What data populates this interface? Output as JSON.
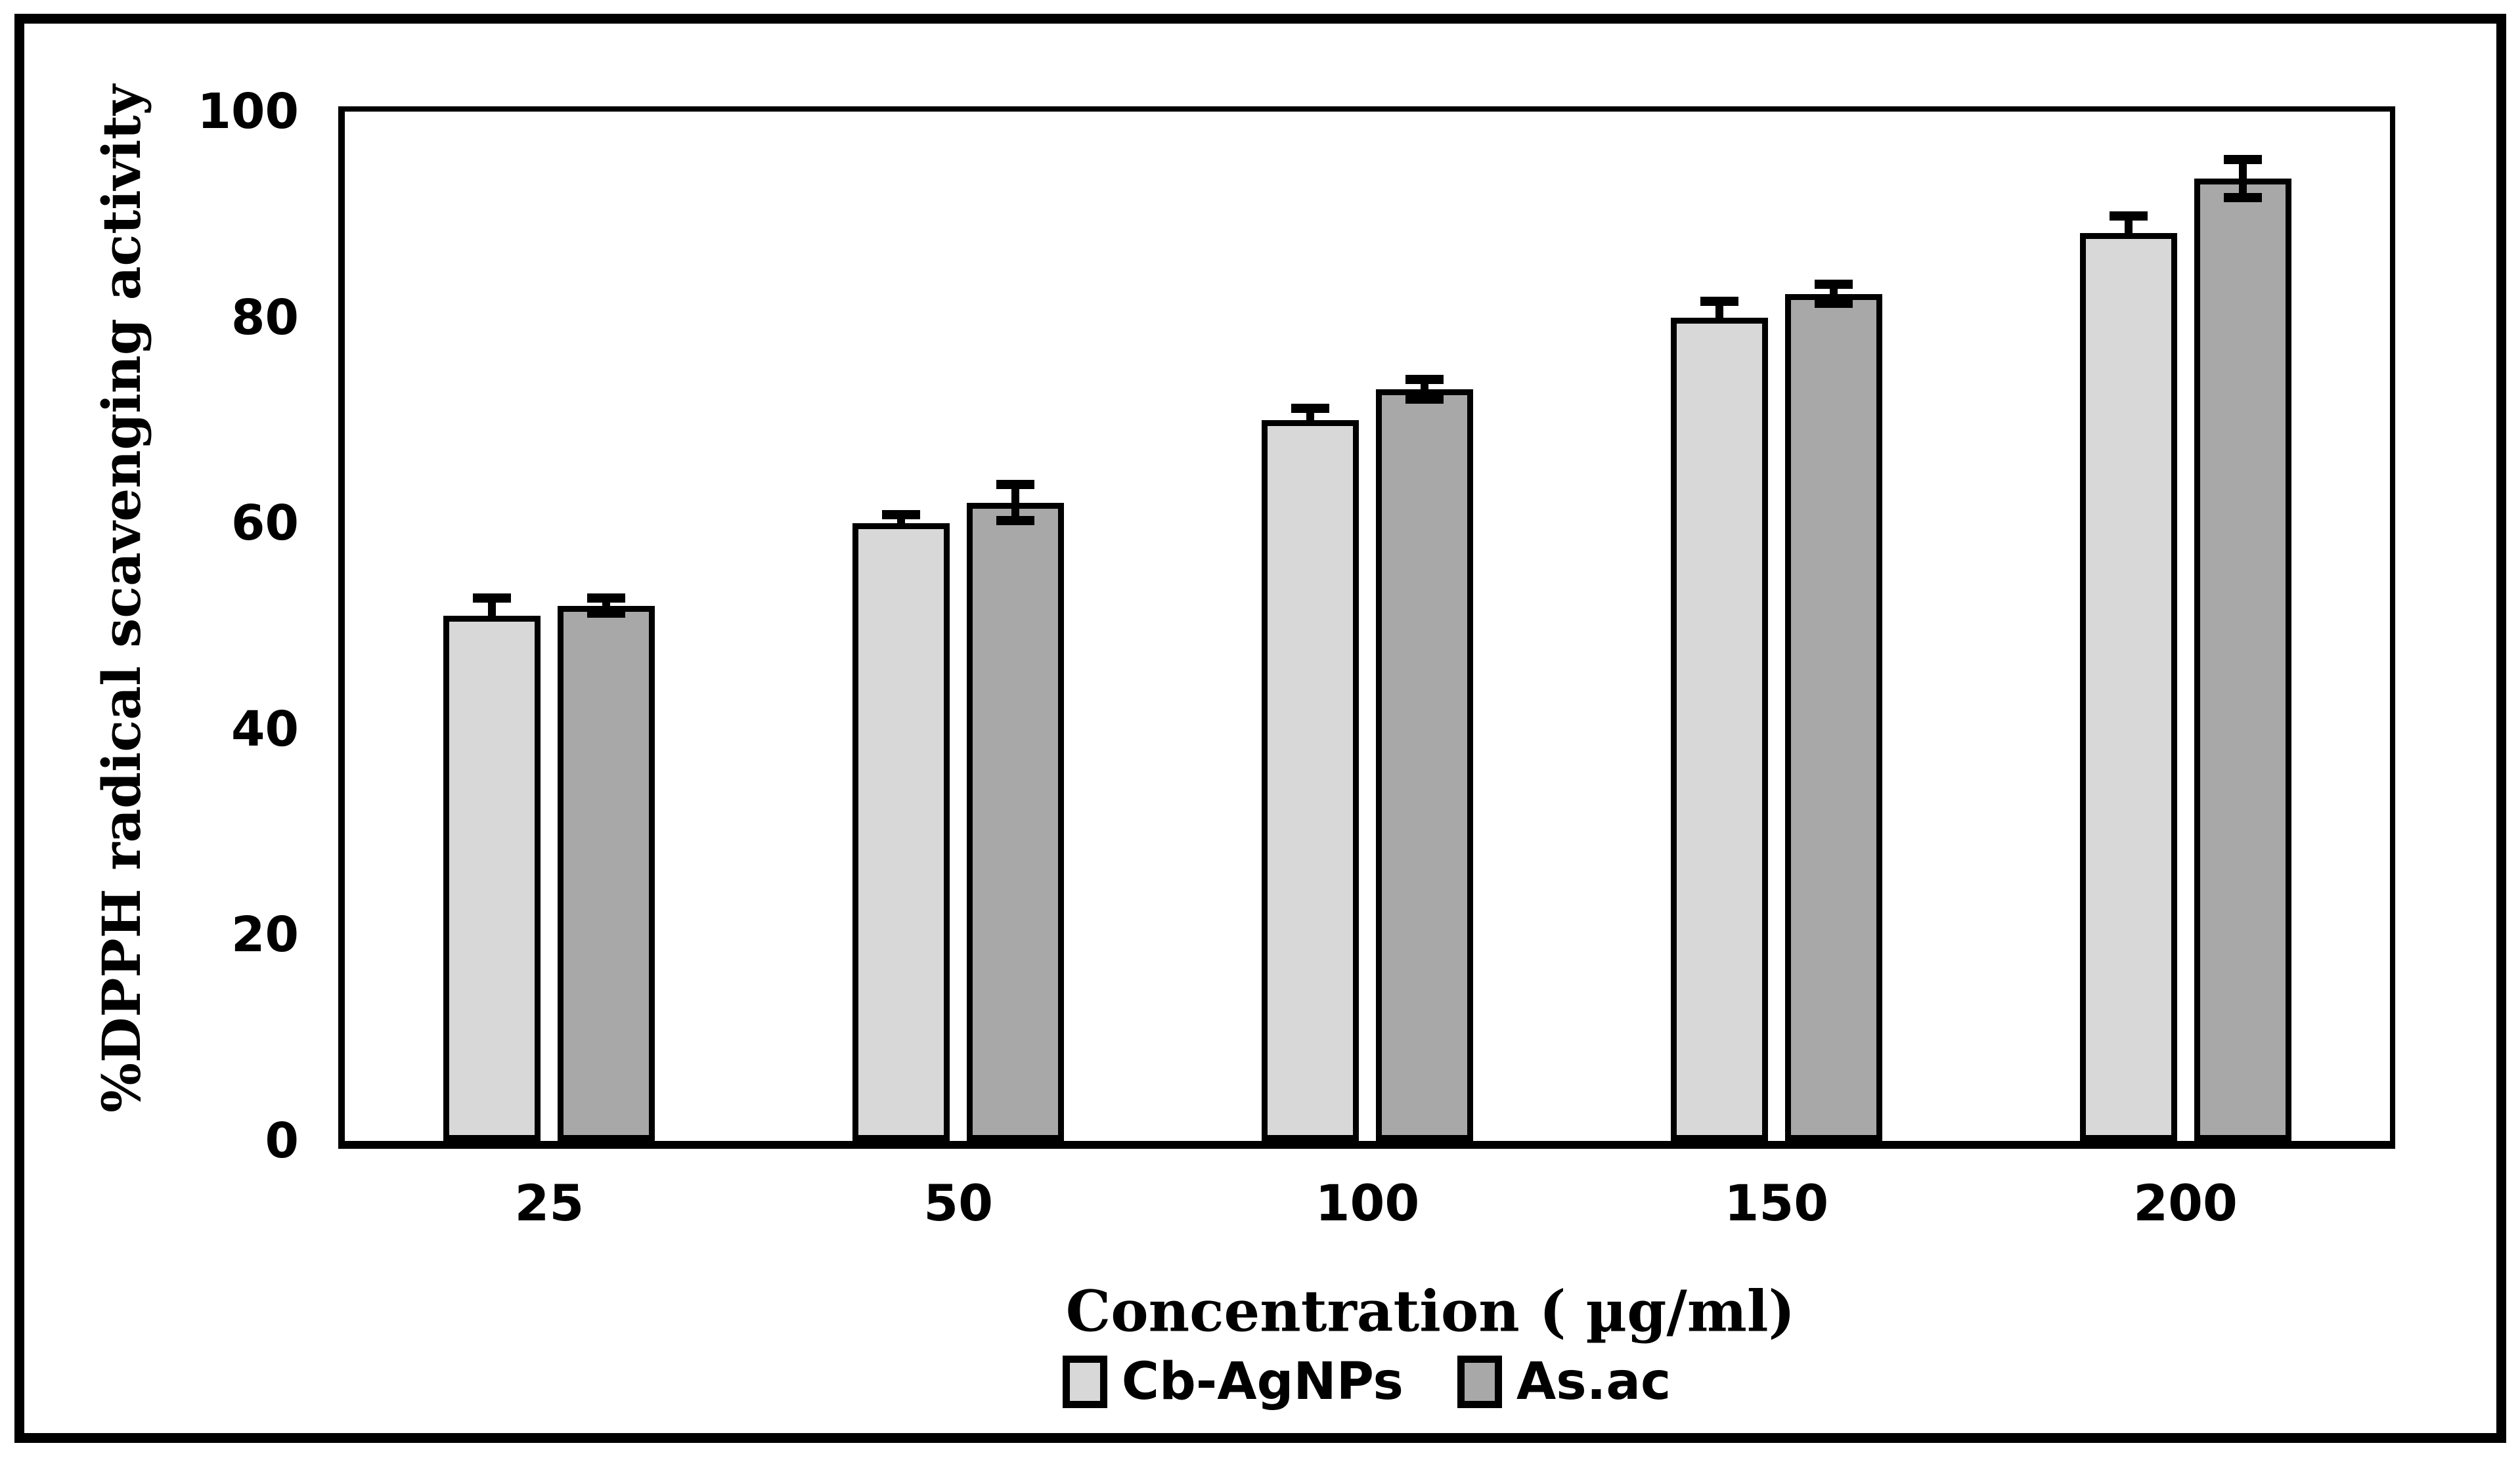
{
  "figure": {
    "background": "#ffffff",
    "frame_color": "#000000"
  },
  "chart_data": {
    "type": "bar",
    "title": "",
    "categories": [
      "25",
      "50",
      "100",
      "150",
      "200"
    ],
    "series": [
      {
        "name": "Cb-AgNPs",
        "color": "#d8d8d8",
        "values": [
          51,
          60,
          70,
          80,
          88.2
        ],
        "errors": [
          2.2,
          1.3,
          1.6,
          2.0,
          2.1
        ],
        "error_style": "plus"
      },
      {
        "name": "As.ac",
        "color": "#a8a8a8",
        "values": [
          52,
          62,
          73,
          82.3,
          93.5
        ],
        "errors": [
          1.2,
          2.2,
          1.4,
          1.4,
          2.3
        ],
        "error_style": "both"
      }
    ],
    "xlabel": "Concentration ( µg/ml)",
    "ylabel": "%DPPH radical scavenging activity",
    "yticks": [
      0,
      20,
      40,
      60,
      80,
      100
    ],
    "ylim": [
      0,
      100
    ],
    "grid": false,
    "legend_position": "bottom",
    "bar_border_color": "#000000",
    "error_bar_color": "#000000"
  }
}
